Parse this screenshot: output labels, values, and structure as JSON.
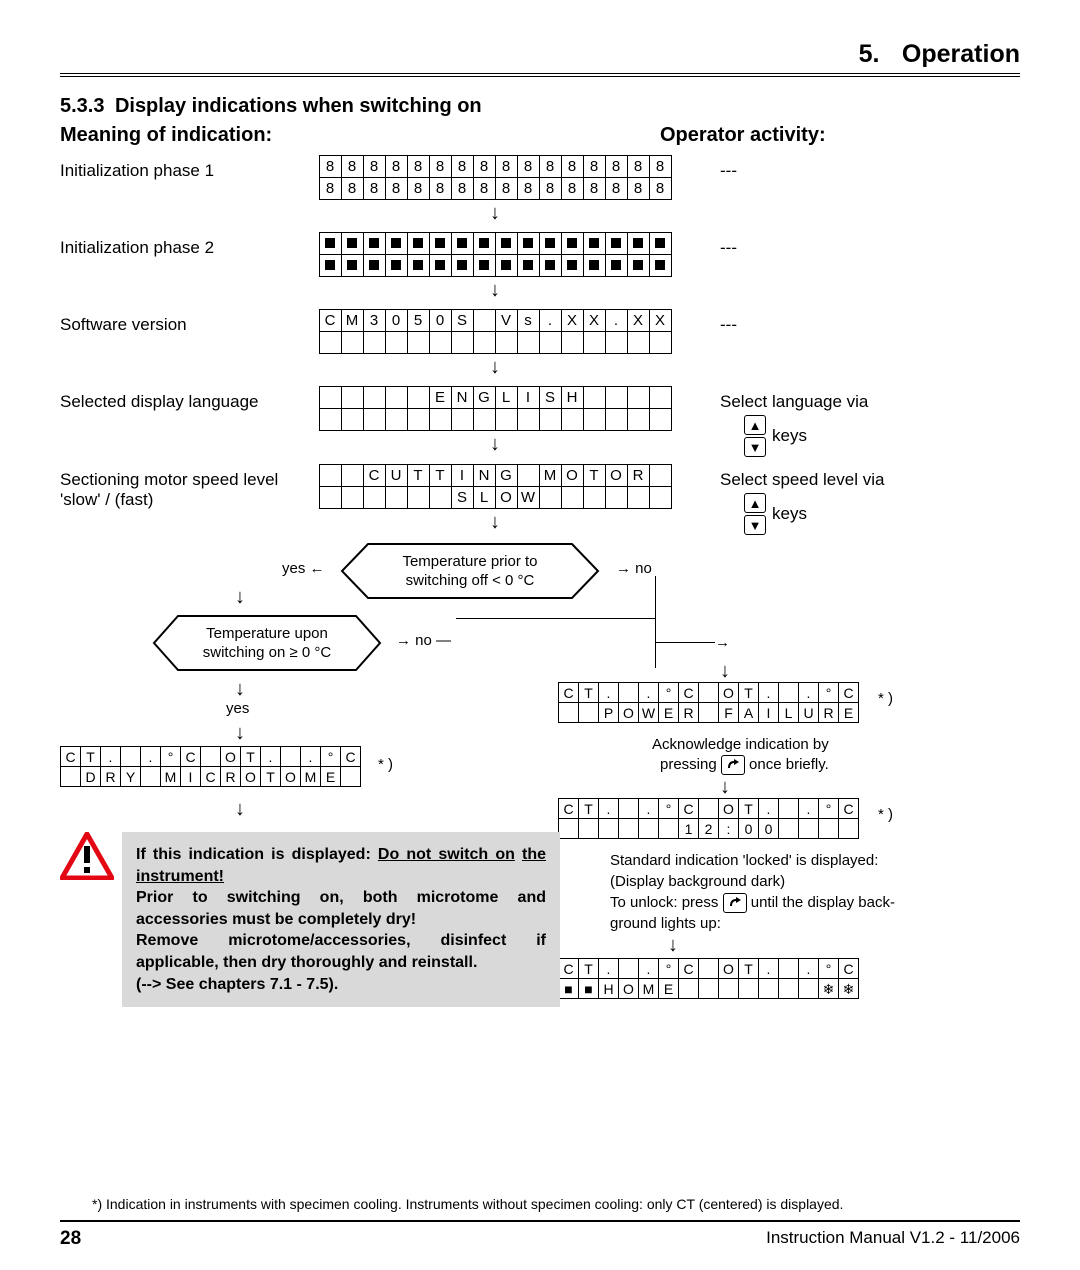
{
  "header": {
    "chapter_num": "5.",
    "chapter_title": "Operation"
  },
  "section": {
    "num": "5.3.3",
    "title": "Display indications when switching on"
  },
  "subheads": {
    "meaning": "Meaning of indication:",
    "operator": "Operator activity:"
  },
  "rows": {
    "init1": {
      "label": "Initialization phase 1",
      "line1": [
        "8",
        "8",
        "8",
        "8",
        "8",
        "8",
        "8",
        "8",
        "8",
        "8",
        "8",
        "8",
        "8",
        "8",
        "8",
        "8"
      ],
      "line2": [
        "8",
        "8",
        "8",
        "8",
        "8",
        "8",
        "8",
        "8",
        "8",
        "8",
        "8",
        "8",
        "8",
        "8",
        "8",
        "8"
      ],
      "activity": "---"
    },
    "init2": {
      "label": "Initialization phase 2",
      "activity": "---"
    },
    "sw": {
      "label": "Software version",
      "line1": [
        "C",
        "M",
        "3",
        "0",
        "5",
        "0",
        "S",
        "",
        "V",
        "s",
        ".",
        "X",
        "X",
        ".",
        "X",
        "X"
      ],
      "activity": "---"
    },
    "lang": {
      "label": "Selected display language",
      "line1": [
        "",
        "",
        "",
        "",
        "",
        "E",
        "N",
        "G",
        "L",
        "I",
        "S",
        "H",
        "",
        "",
        "",
        ""
      ],
      "activity": "Select language via",
      "keys_label": "keys"
    },
    "motor": {
      "label": "Sectioning motor speed level  'slow' / (fast)",
      "line1": [
        "",
        "",
        "C",
        "U",
        "T",
        "T",
        "I",
        "N",
        "G",
        "",
        "M",
        "O",
        "T",
        "O",
        "R",
        ""
      ],
      "line2": [
        "",
        "",
        "",
        "",
        "",
        "",
        "S",
        "L",
        "O",
        "W",
        "",
        "",
        "",
        "",
        "",
        ""
      ],
      "activity": "Select speed level via",
      "keys_label": "keys"
    }
  },
  "flow": {
    "dec1": "Temperature prior to\nswitching off < 0 °C",
    "dec2": "Temperature upon\nswitching on ≥ 0 °C",
    "yes": "yes",
    "no": "no",
    "star": "* )",
    "dry_top": [
      "C",
      "T",
      ".",
      "",
      ".",
      "°",
      "C",
      "",
      "O",
      "T",
      ".",
      "",
      ".",
      "°",
      "C"
    ],
    "dry_bot": [
      "",
      "D",
      "R",
      "Y",
      "",
      "M",
      "I",
      "C",
      "R",
      "O",
      "T",
      "O",
      "M",
      "E",
      ""
    ],
    "pf_top": [
      "C",
      "T",
      ".",
      "",
      ".",
      "°",
      "C",
      "",
      "O",
      "T",
      ".",
      "",
      ".",
      "°",
      "C"
    ],
    "pf_bot": [
      "",
      "",
      "P",
      "O",
      "W",
      "E",
      "R",
      "",
      "F",
      "A",
      "I",
      "L",
      "U",
      "R",
      "E"
    ],
    "ack1": "Acknowledge indication by",
    "ack2_a": "pressing",
    "ack2_b": "once briefly.",
    "time_top": [
      "C",
      "T",
      ".",
      "",
      ".",
      "°",
      "C",
      "",
      "O",
      "T",
      ".",
      "",
      ".",
      "°",
      "C"
    ],
    "time_bot": [
      "",
      "",
      "",
      "",
      "",
      "",
      "1",
      "2",
      ":",
      "0",
      "0",
      "",
      "",
      "",
      ""
    ],
    "std1": "Standard indication 'locked' is displayed:",
    "std2": "(Display background dark)",
    "std3_a": "To unlock: press",
    "std3_b": "until the display back-",
    "std4": "ground lights up:",
    "home_top": [
      "C",
      "T",
      ".",
      "",
      ".",
      "°",
      "C",
      "",
      "O",
      "T",
      ".",
      "",
      ".",
      "°",
      "C"
    ],
    "home_bot": [
      "■",
      "■",
      "H",
      "O",
      "M",
      "E",
      "",
      "",
      "",
      "",
      "",
      "",
      "",
      "❄",
      "❄"
    ]
  },
  "warning": {
    "l1": "If this indication is displayed: ",
    "l1u": "Do not switch on",
    "l2u": "the instrument!",
    "l3": "Prior to switching on, both microtome and accessories must be completely dry!",
    "l4": "Remove microtome/accessories, disinfect if applicable, then dry thoroughly and reinstall.",
    "l5": "(--> See chapters 7.1 - 7.5)."
  },
  "footnote": "*) Indication in instruments with specimen cooling. Instruments without specimen cooling: only CT (centered) is displayed.",
  "footer": {
    "page": "28",
    "manual": "Instruction Manual V1.2 - 11/2006"
  },
  "colors": {
    "warn_red": "#e30613",
    "gray_box": "#d9d9d9"
  }
}
